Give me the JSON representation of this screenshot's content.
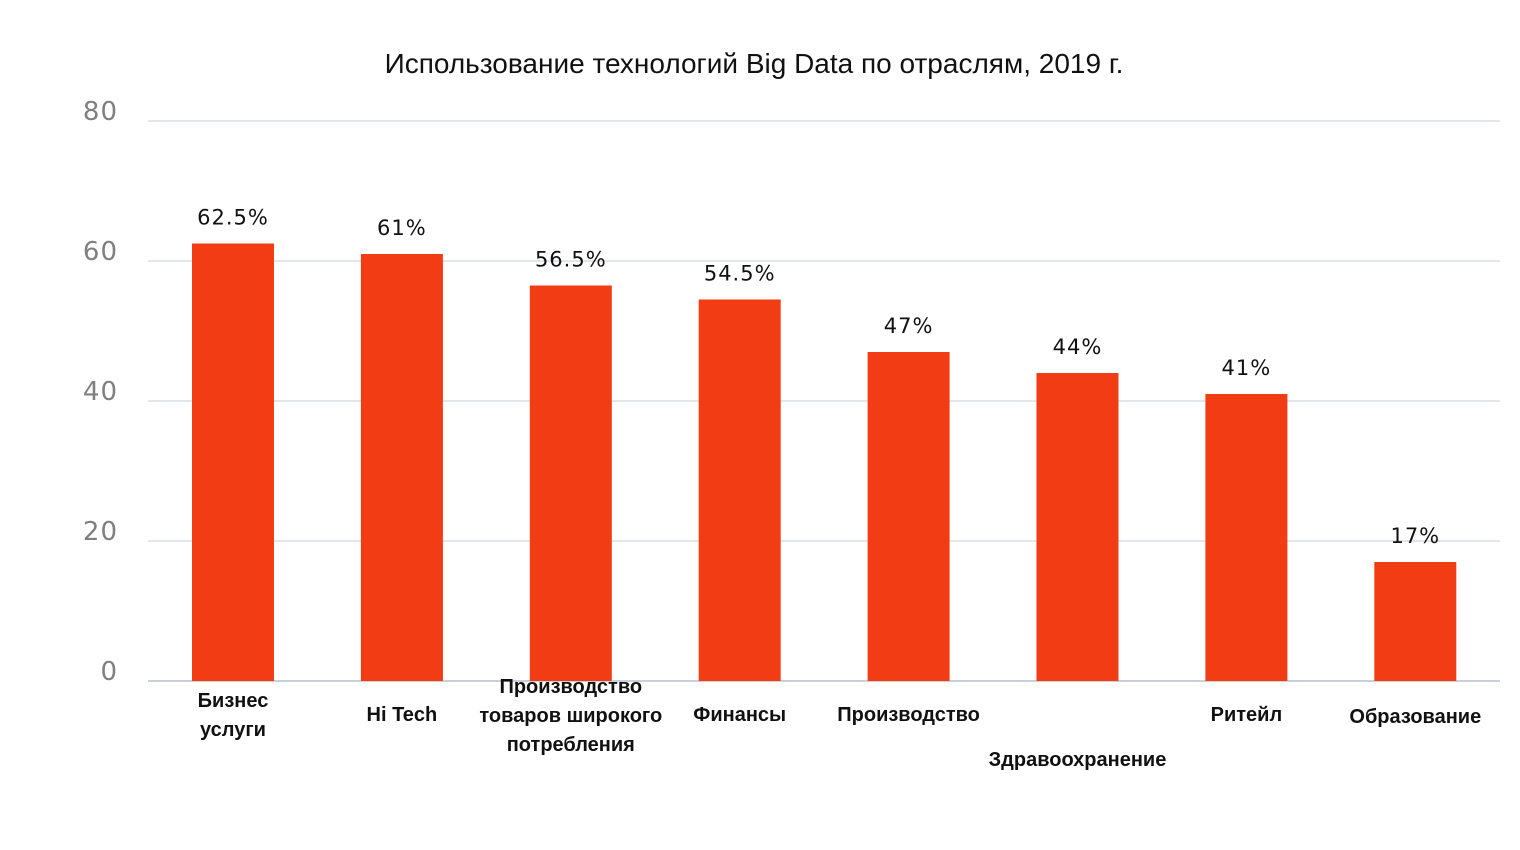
{
  "chart_data": {
    "type": "bar",
    "title": "Использование технологий Big Data по отраслям, 2019 г.",
    "xlabel": "",
    "ylabel": "",
    "ylim": [
      0,
      80
    ],
    "yticks": [
      0,
      20,
      40,
      60,
      80
    ],
    "grid": true,
    "bar_color": "#f23c14",
    "categories": [
      [
        "Бизнес",
        "услуги"
      ],
      [
        "Hi Tech"
      ],
      [
        "Производство",
        "товаров широкого",
        "потребления"
      ],
      [
        "Финансы"
      ],
      [
        "Производство"
      ],
      [
        "Здравоохранение"
      ],
      [
        "Ритейл"
      ],
      [
        "Образование"
      ]
    ],
    "values": [
      62.5,
      61,
      56.5,
      54.5,
      47,
      44,
      41,
      17
    ],
    "data_labels": [
      "62.5%",
      "61%",
      "56.5%",
      "54.5%",
      "47%",
      "44%",
      "41%",
      "17%"
    ]
  }
}
